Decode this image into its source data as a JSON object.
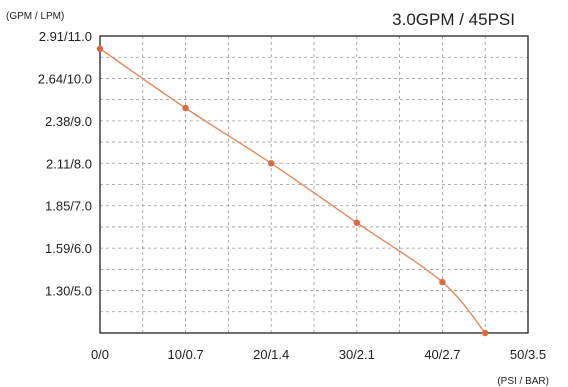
{
  "chart_data": {
    "type": "line",
    "title": "3.0GPM / 45PSI",
    "ylabel": "(GPM / LPM)",
    "xlabel": "(PSI / BAR)",
    "x_ticks": [
      "0/0",
      "10/0.7",
      "20/1.4",
      "30/2.1",
      "40/2.7",
      "50/3.5"
    ],
    "y_ticks": [
      "1.30/5.0",
      "1.59/6.0",
      "1.85/7.0",
      "2.11/8.0",
      "2.38/9.0",
      "2.64/10.0",
      "2.91/11.0"
    ],
    "xlim": [
      0,
      50
    ],
    "ylim": [
      4.0,
      11.0
    ],
    "grid": true,
    "series": [
      {
        "x": [
          0,
          10,
          20,
          30,
          40,
          45
        ],
        "y": [
          10.7,
          9.3,
          8.0,
          6.6,
          5.2,
          4.0
        ]
      }
    ],
    "line_color": "#e58a5a",
    "marker_color": "#d96a3f"
  }
}
